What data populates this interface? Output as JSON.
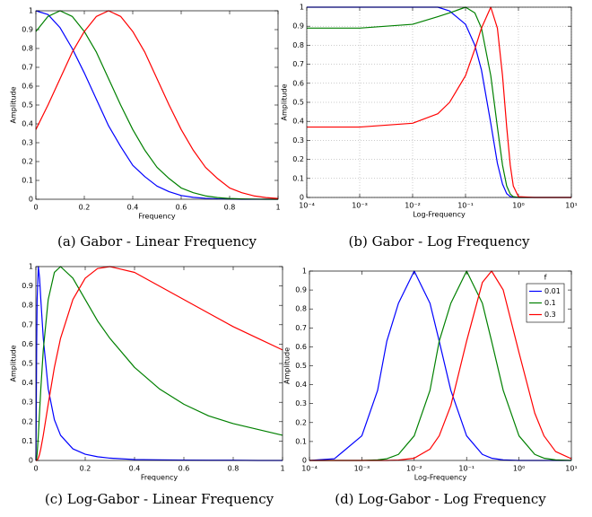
{
  "chart_data": [
    {
      "type": "line",
      "caption": "(a) Gabor - Linear Frequency",
      "xlabel": "Frequency",
      "ylabel": "Amplitude",
      "x": [
        0,
        0.05,
        0.1,
        0.15,
        0.2,
        0.25,
        0.3,
        0.35,
        0.4,
        0.45,
        0.5,
        0.55,
        0.6,
        0.65,
        0.7,
        0.75,
        0.8,
        0.85,
        0.9,
        0.95,
        1
      ],
      "series": [
        {
          "name": "0.01",
          "color": "#0000ff",
          "values": [
            1,
            0.98,
            0.91,
            0.8,
            0.67,
            0.53,
            0.39,
            0.28,
            0.18,
            0.12,
            0.07,
            0.04,
            0.02,
            0.01,
            0.005,
            0.002,
            0.001,
            0,
            0,
            0,
            0
          ]
        },
        {
          "name": "0.1",
          "color": "#008000",
          "values": [
            0.89,
            0.97,
            1,
            0.97,
            0.89,
            0.78,
            0.64,
            0.5,
            0.37,
            0.26,
            0.17,
            0.11,
            0.06,
            0.035,
            0.018,
            0.009,
            0.004,
            0.002,
            0.001,
            0,
            0
          ]
        },
        {
          "name": "0.3",
          "color": "#ff0000",
          "values": [
            0.37,
            0.5,
            0.64,
            0.78,
            0.89,
            0.97,
            1,
            0.97,
            0.89,
            0.78,
            0.64,
            0.5,
            0.37,
            0.26,
            0.17,
            0.11,
            0.06,
            0.035,
            0.018,
            0.009,
            0.004
          ]
        }
      ],
      "xlim": [
        0,
        1
      ],
      "ylim": [
        0,
        1
      ],
      "xticks": [
        0,
        0.2,
        0.4,
        0.6,
        0.8,
        1
      ],
      "yticks": [
        0,
        0.1,
        0.2,
        0.3,
        0.4,
        0.5,
        0.6,
        0.7,
        0.8,
        0.9,
        1
      ],
      "xscale": "linear",
      "grid": false
    },
    {
      "type": "line",
      "caption": "(b) Gabor - Log Frequency",
      "xlabel": "Log-Frequency",
      "ylabel": "Amplitude",
      "x": [
        0.0001,
        0.001,
        0.01,
        0.03,
        0.05,
        0.1,
        0.15,
        0.2,
        0.3,
        0.4,
        0.5,
        0.6,
        0.7,
        0.8,
        1,
        2,
        10
      ],
      "series": [
        {
          "name": "0.01",
          "color": "#0000ff",
          "values": [
            1,
            1,
            1,
            1,
            0.98,
            0.91,
            0.8,
            0.67,
            0.39,
            0.18,
            0.07,
            0.02,
            0.005,
            0.001,
            0,
            0,
            0
          ]
        },
        {
          "name": "0.1",
          "color": "#008000",
          "values": [
            0.89,
            0.89,
            0.91,
            0.95,
            0.97,
            1,
            0.97,
            0.89,
            0.64,
            0.37,
            0.17,
            0.06,
            0.018,
            0.004,
            0,
            0,
            0
          ]
        },
        {
          "name": "0.3",
          "color": "#ff0000",
          "values": [
            0.37,
            0.37,
            0.39,
            0.44,
            0.5,
            0.64,
            0.78,
            0.89,
            1,
            0.89,
            0.64,
            0.37,
            0.17,
            0.06,
            0.004,
            0,
            0
          ]
        }
      ],
      "xlim": [
        0.0001,
        10
      ],
      "ylim": [
        0,
        1
      ],
      "xticks": [
        {
          "value": 0.0001,
          "label": "10⁻⁴"
        },
        {
          "value": 0.001,
          "label": "10⁻³"
        },
        {
          "value": 0.01,
          "label": "10⁻²"
        },
        {
          "value": 0.1,
          "label": "10⁻¹"
        },
        {
          "value": 1,
          "label": "10⁰"
        },
        {
          "value": 10,
          "label": "10¹"
        }
      ],
      "yticks": [
        0,
        0.1,
        0.2,
        0.3,
        0.4,
        0.5,
        0.6,
        0.7,
        0.8,
        0.9,
        1
      ],
      "xscale": "log",
      "grid": true
    },
    {
      "type": "line",
      "caption": "(c) Log-Gabor - Linear Frequency",
      "xlabel": "Frequency",
      "ylabel": "Amplitude",
      "x": [
        0,
        0.001,
        0.003,
        0.005,
        0.01,
        0.015,
        0.02,
        0.03,
        0.05,
        0.075,
        0.1,
        0.15,
        0.2,
        0.25,
        0.3,
        0.4,
        0.5,
        0.6,
        0.7,
        0.8,
        0.9,
        1
      ],
      "series": [
        {
          "name": "0.01",
          "color": "#0000ff",
          "values": [
            0,
            0.13,
            0.57,
            0.83,
            1,
            0.94,
            0.83,
            0.63,
            0.37,
            0.21,
            0.13,
            0.06,
            0.032,
            0.019,
            0.012,
            0.005,
            0.003,
            0.002,
            0.001,
            0.001,
            0,
            0
          ]
        },
        {
          "name": "0.1",
          "color": "#008000",
          "values": [
            0,
            0,
            0.009,
            0.032,
            0.13,
            0.25,
            0.37,
            0.57,
            0.83,
            0.97,
            1,
            0.94,
            0.83,
            0.72,
            0.63,
            0.48,
            0.37,
            0.29,
            0.23,
            0.19,
            0.16,
            0.13
          ]
        },
        {
          "name": "0.3",
          "color": "#ff0000",
          "values": [
            0,
            0,
            0,
            0.002,
            0.012,
            0.032,
            0.06,
            0.13,
            0.29,
            0.48,
            0.63,
            0.83,
            0.94,
            0.99,
            1,
            0.97,
            0.9,
            0.83,
            0.76,
            0.69,
            0.63,
            0.57
          ]
        }
      ],
      "xlim": [
        0,
        1
      ],
      "ylim": [
        0,
        1
      ],
      "xticks": [
        0,
        0.2,
        0.4,
        0.6,
        0.8,
        1
      ],
      "yticks": [
        0,
        0.1,
        0.2,
        0.3,
        0.4,
        0.5,
        0.6,
        0.7,
        0.8,
        0.9,
        1
      ],
      "xscale": "linear",
      "grid": false
    },
    {
      "type": "line",
      "caption": "(d) Log-Gabor - Log Frequency",
      "xlabel": "Log-Frequency",
      "ylabel": "Amplitude",
      "x": [
        0.0001,
        0.0003,
        0.001,
        0.002,
        0.003,
        0.005,
        0.01,
        0.02,
        0.03,
        0.05,
        0.1,
        0.2,
        0.3,
        0.5,
        1,
        2,
        3,
        5,
        10
      ],
      "series": [
        {
          "name": "0.01",
          "color": "#0000ff",
          "values": [
            0,
            0.009,
            0.13,
            0.37,
            0.63,
            0.83,
            1,
            0.83,
            0.63,
            0.37,
            0.13,
            0.032,
            0.012,
            0.003,
            0,
            0,
            0,
            0,
            0
          ]
        },
        {
          "name": "0.1",
          "color": "#008000",
          "values": [
            0,
            0,
            0,
            0.003,
            0.009,
            0.032,
            0.13,
            0.37,
            0.63,
            0.83,
            1,
            0.83,
            0.63,
            0.37,
            0.13,
            0.032,
            0.012,
            0.003,
            0
          ]
        },
        {
          "name": "0.3",
          "color": "#ff0000",
          "values": [
            0,
            0,
            0,
            0,
            0,
            0.002,
            0.012,
            0.06,
            0.13,
            0.29,
            0.63,
            0.94,
            1,
            0.9,
            0.57,
            0.25,
            0.13,
            0.047,
            0.009
          ]
        }
      ],
      "xlim": [
        0.0001,
        10
      ],
      "ylim": [
        0,
        1
      ],
      "xticks": [
        {
          "value": 0.0001,
          "label": "10⁻⁴"
        },
        {
          "value": 0.001,
          "label": "10⁻³"
        },
        {
          "value": 0.01,
          "label": "10⁻²"
        },
        {
          "value": 0.1,
          "label": "10⁻¹"
        },
        {
          "value": 1,
          "label": "10⁰"
        },
        {
          "value": 10,
          "label": "10¹"
        }
      ],
      "yticks": [
        0,
        0.1,
        0.2,
        0.3,
        0.4,
        0.5,
        0.6,
        0.7,
        0.8,
        0.9,
        1
      ],
      "xscale": "log",
      "grid": false,
      "legend": "upper right",
      "legend_title": "f"
    }
  ]
}
